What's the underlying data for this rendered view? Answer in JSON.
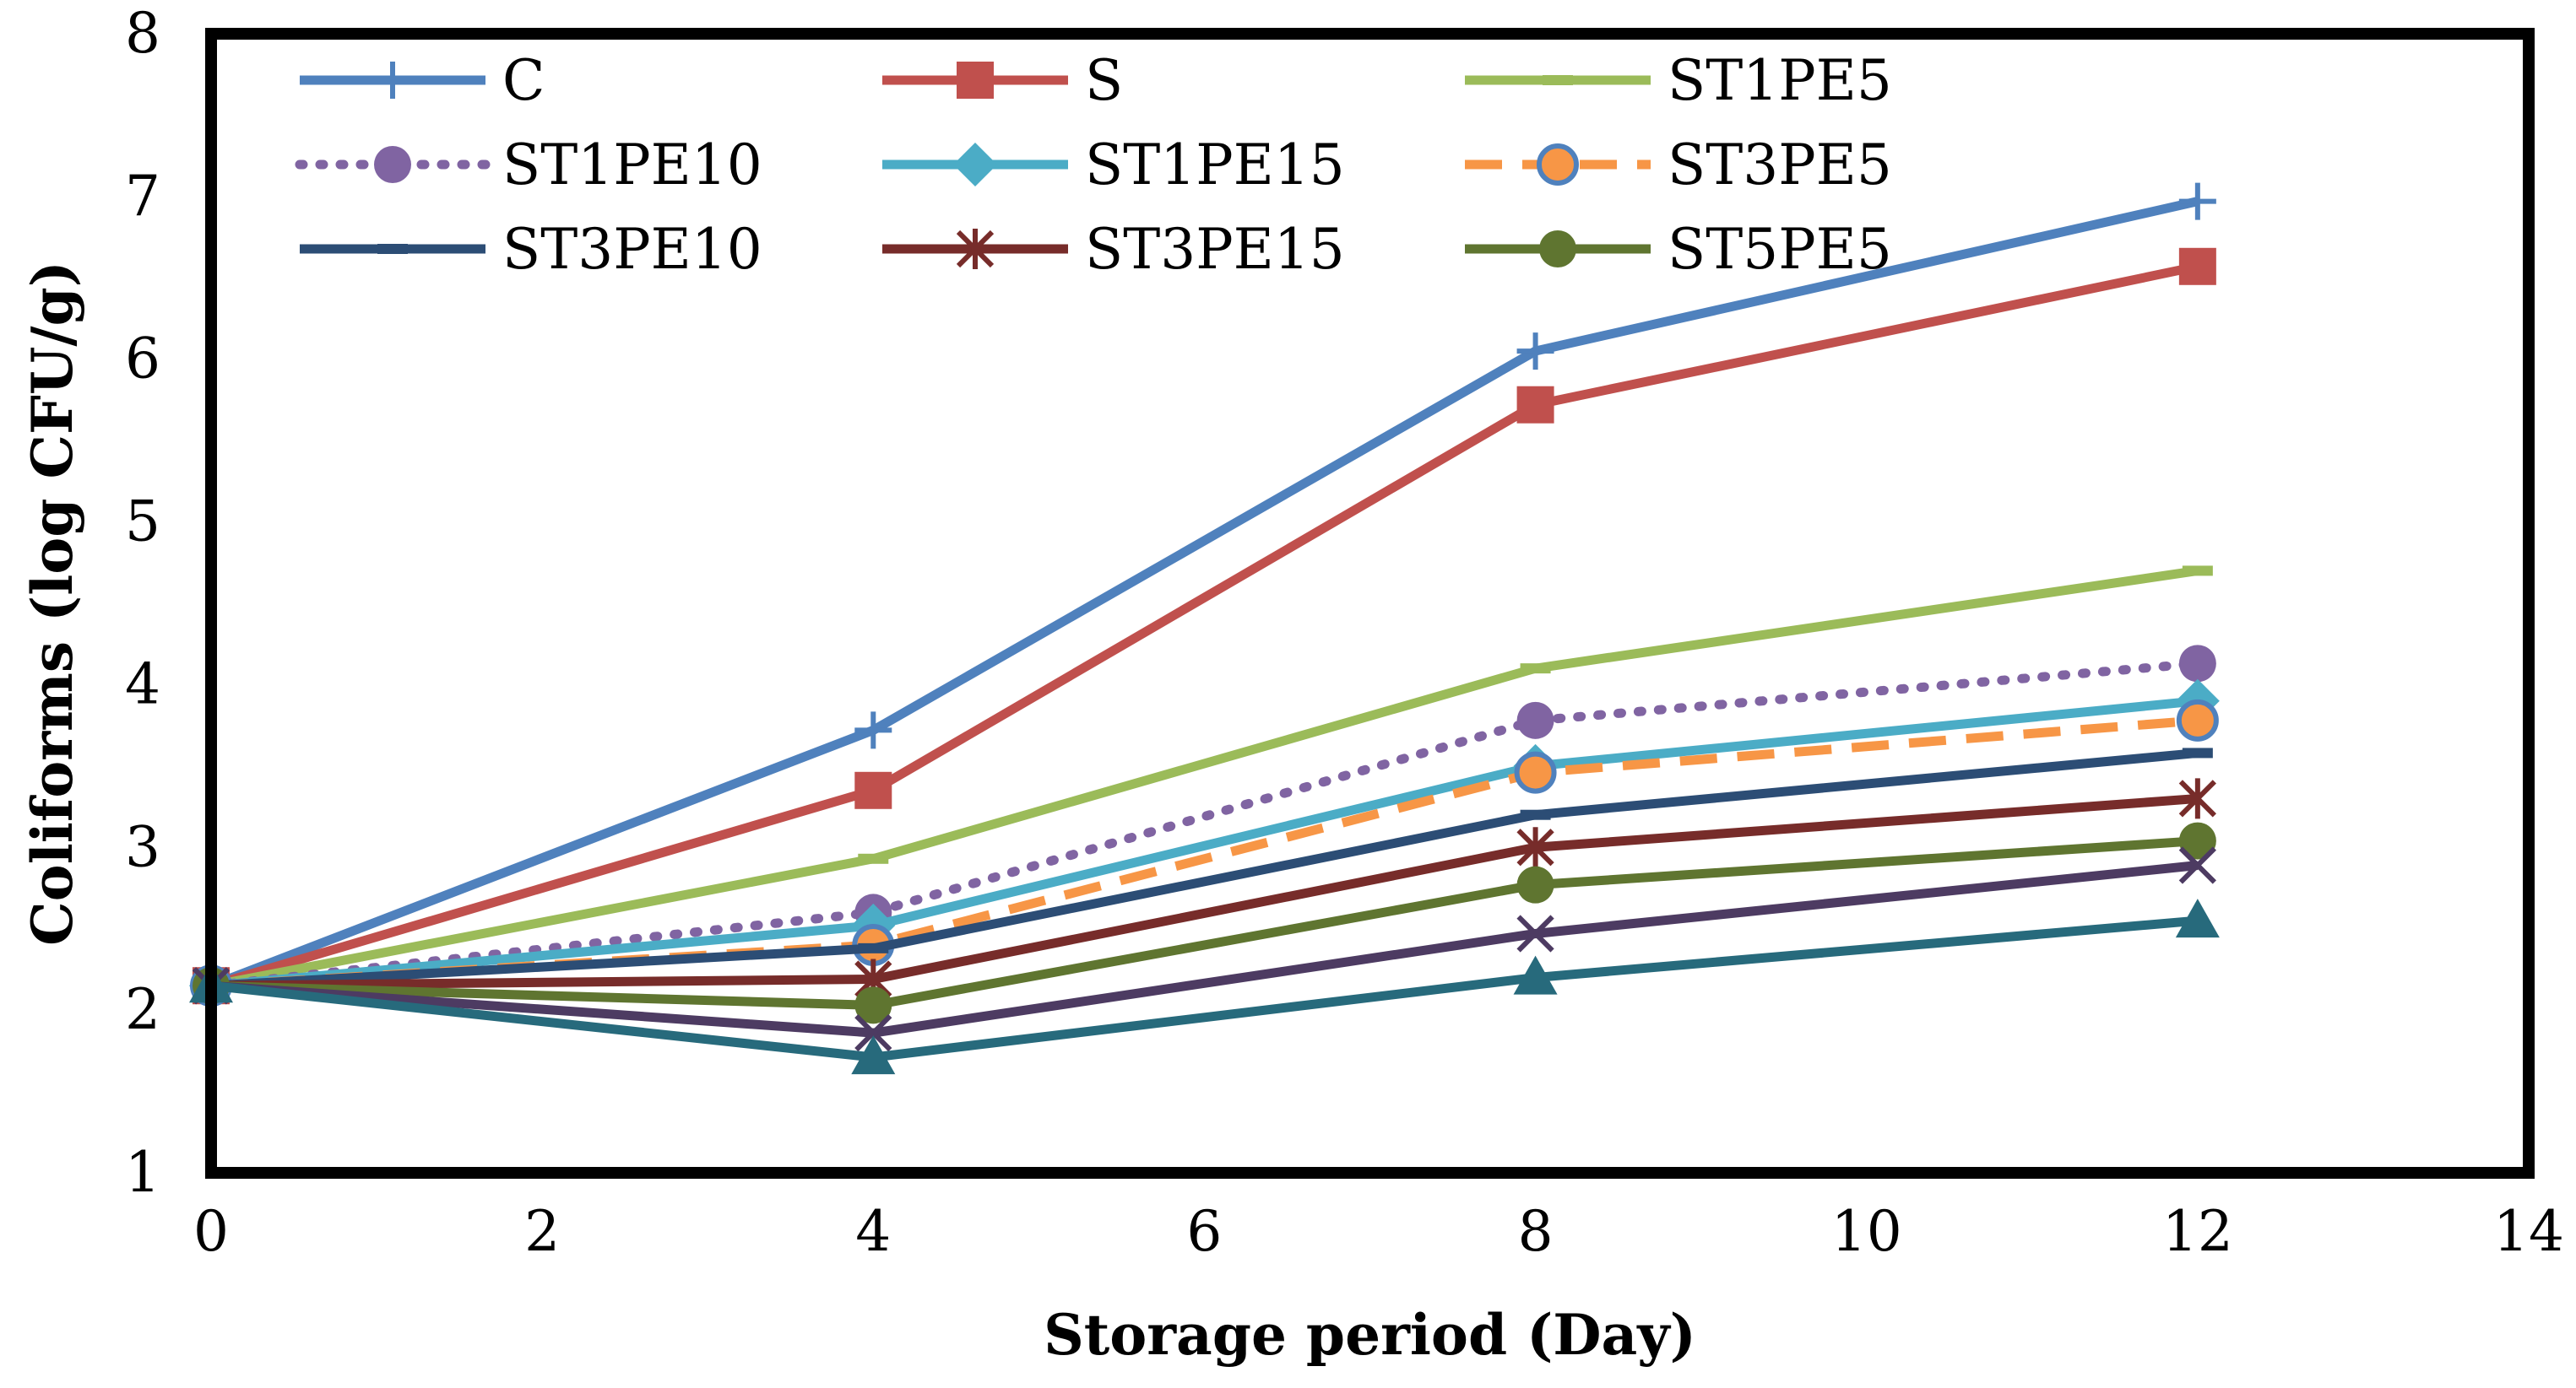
{
  "chart_data": {
    "type": "line",
    "title": "",
    "xlabel": "Storage period (Day)",
    "ylabel": "Coliforms (log CFU/g)",
    "xlim": [
      0,
      14
    ],
    "ylim": [
      1,
      8
    ],
    "xticks": [
      "0",
      "2",
      "4",
      "6",
      "8",
      "10",
      "12",
      "14"
    ],
    "yticks": [
      "1",
      "2",
      "3",
      "4",
      "5",
      "6",
      "7",
      "8"
    ],
    "grid": false,
    "legend_position": "top",
    "x": [
      0,
      4,
      8,
      12
    ],
    "series": [
      {
        "name": "C",
        "values": [
          2.15,
          3.72,
          6.05,
          6.97
        ],
        "color": "#4f81bd",
        "marker": "plus",
        "dash": "solid"
      },
      {
        "name": "S",
        "values": [
          2.15,
          3.35,
          5.72,
          6.57
        ],
        "color": "#c0504d",
        "marker": "square",
        "dash": "solid"
      },
      {
        "name": "ST1PE5",
        "values": [
          2.15,
          2.93,
          4.1,
          4.7
        ],
        "color": "#9bbb59",
        "marker": "dash",
        "dash": "solid"
      },
      {
        "name": "ST1PE10",
        "values": [
          2.15,
          2.6,
          3.78,
          4.13
        ],
        "color": "#8064a2",
        "marker": "circle",
        "dash": "dotted"
      },
      {
        "name": "ST1PE15",
        "values": [
          2.15,
          2.52,
          3.5,
          3.9
        ],
        "color": "#4bacc6",
        "marker": "diamond",
        "dash": "solid"
      },
      {
        "name": "ST3PE5",
        "values": [
          2.15,
          2.4,
          3.46,
          3.78
        ],
        "color": "#f79646",
        "marker": "ringcircle",
        "dash": "dashed"
      },
      {
        "name": "ST3PE10",
        "values": [
          2.15,
          2.38,
          3.2,
          3.58
        ],
        "color": "#2c4d75",
        "marker": "dash",
        "dash": "solid"
      },
      {
        "name": "ST3PE15",
        "values": [
          2.15,
          2.19,
          3.0,
          3.3
        ],
        "color": "#772c2a",
        "marker": "star",
        "dash": "solid"
      },
      {
        "name": "ST5PE5",
        "values": [
          2.15,
          2.03,
          2.77,
          3.04
        ],
        "color": "#5f7530",
        "marker": "circle",
        "dash": "solid"
      },
      {
        "name": "",
        "values": [
          2.15,
          1.86,
          2.47,
          2.89
        ],
        "color": "#4d3b62",
        "marker": "x",
        "dash": "solid"
      },
      {
        "name": "",
        "values": [
          2.15,
          1.71,
          2.2,
          2.55
        ],
        "color": "#276a7c",
        "marker": "triangle",
        "dash": "solid"
      }
    ]
  }
}
